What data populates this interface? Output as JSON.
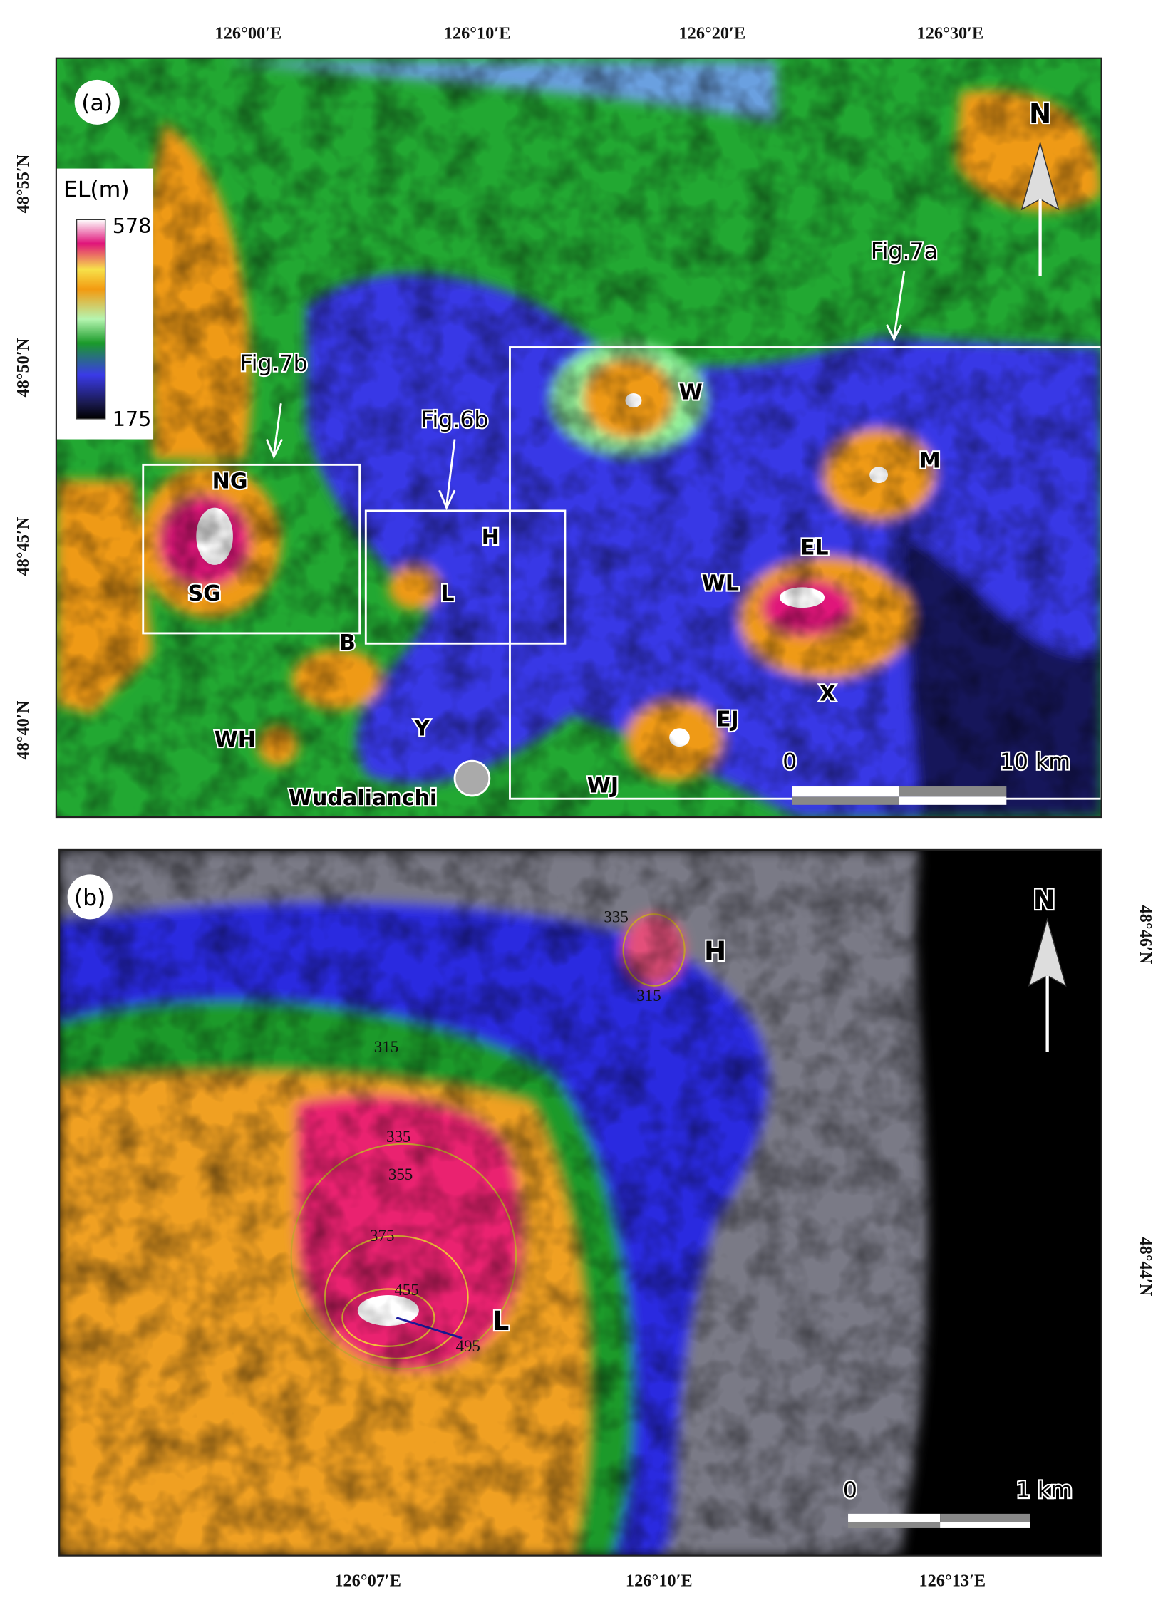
{
  "panel_a": {
    "label": "(a)",
    "lon_ticks": [
      "126°00′E",
      "126°10′E",
      "126°20′E",
      "126°30′E"
    ],
    "lat_ticks": [
      "48°55′N",
      "48°50′N",
      "48°45′N",
      "48°40′N"
    ],
    "legend": {
      "title": "EL(m)",
      "max": 578,
      "min": 175
    },
    "north": "N",
    "callouts": [
      "Fig.7a",
      "Fig.7b",
      "Fig.6b"
    ],
    "features": [
      "W",
      "M",
      "NG",
      "H",
      "EL",
      "WL",
      "SG",
      "L",
      "B",
      "X",
      "EJ",
      "WH",
      "Y",
      "WJ"
    ],
    "town": "Wudalianchi",
    "scale": {
      "start": "0",
      "end": "10 km"
    }
  },
  "panel_b": {
    "label": "(b)",
    "lon_ticks": [
      "126°07′E",
      "126°10′E",
      "126°13′E"
    ],
    "lat_ticks": [
      "48°46′N",
      "48°44′N"
    ],
    "north": "N",
    "features": [
      "H",
      "L"
    ],
    "contours": [
      335,
      315,
      315,
      335,
      355,
      375,
      455,
      495
    ],
    "scale": {
      "start": "0",
      "end": "1 km"
    }
  }
}
